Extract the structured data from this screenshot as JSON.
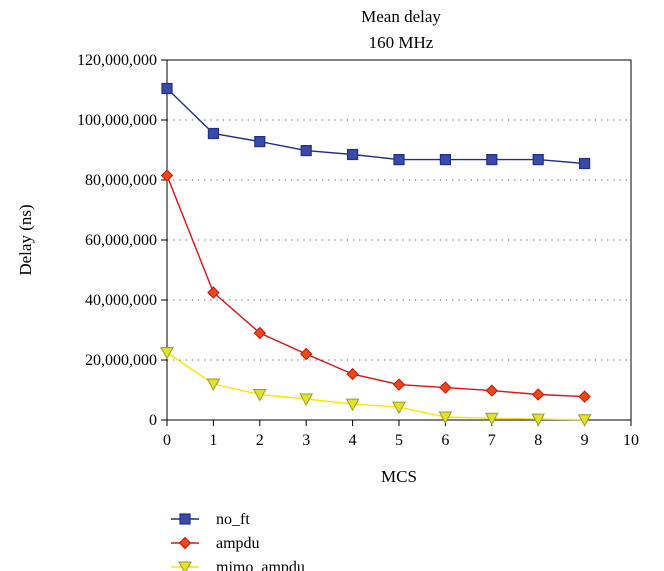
{
  "chart_data": {
    "type": "line",
    "title": "Mean delay",
    "subtitle": "160 MHz",
    "xlabel": "MCS",
    "ylabel": "Delay (ns)",
    "xlim": [
      0,
      10
    ],
    "ylim": [
      0,
      120000000
    ],
    "x_ticks": [
      "0",
      "1",
      "2",
      "3",
      "4",
      "5",
      "6",
      "7",
      "8",
      "9",
      "10"
    ],
    "y_ticks": [
      "0",
      "20,000,000",
      "40,000,000",
      "60,000,000",
      "80,000,000",
      "100,000,000",
      "120,000,000"
    ],
    "grid": "horizontal dotted",
    "legend_position": "bottom",
    "x": [
      0,
      1,
      2,
      3,
      4,
      5,
      6,
      7,
      8,
      9
    ],
    "series": [
      {
        "name": "no_ft",
        "color": "#1f2f8f",
        "fill": "#3a4aa8",
        "marker": "square",
        "values": [
          110500000,
          95500000,
          92800000,
          89800000,
          88500000,
          86800000,
          86800000,
          86800000,
          86800000,
          85500000
        ]
      },
      {
        "name": "ampdu",
        "color": "#e01010",
        "fill": "#e84a14",
        "marker": "diamond",
        "values": [
          81500000,
          42500000,
          29000000,
          22000000,
          15300000,
          11800000,
          10800000,
          9800000,
          8500000,
          7800000
        ]
      },
      {
        "name": "mimo_ampdu",
        "color": "#ffe400",
        "fill": "#e2e22a",
        "marker": "triangle-down",
        "values": [
          22500000,
          12000000,
          8500000,
          7000000,
          5300000,
          4300000,
          1000000,
          600000,
          300000,
          100000
        ]
      }
    ]
  }
}
